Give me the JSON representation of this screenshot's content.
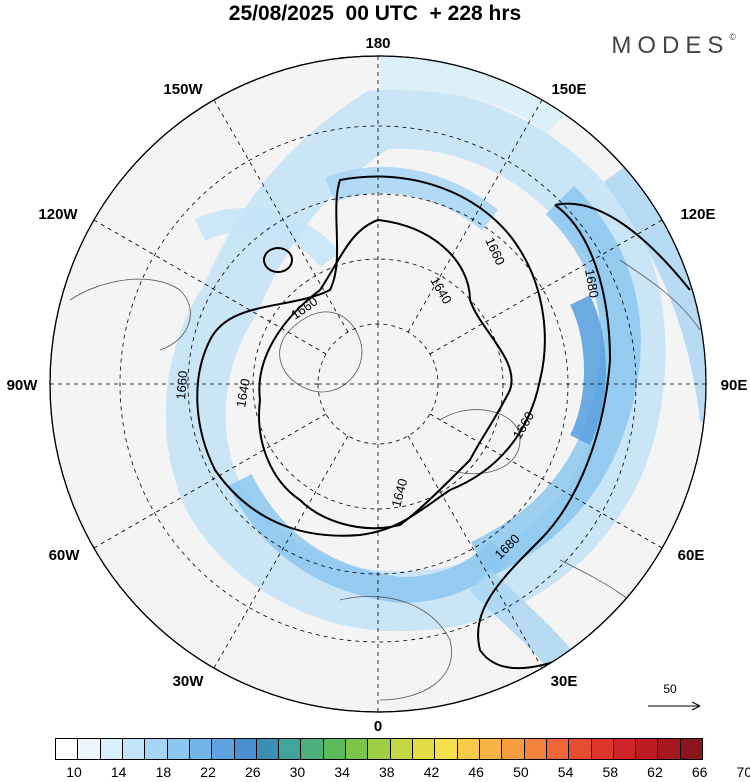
{
  "header": {
    "title": "25/08/2025  00 UTC  + 228 hrs",
    "brand": "MODES",
    "brand_mark": "©"
  },
  "longitude_labels": [
    "180",
    "150E",
    "120E",
    "90E",
    "60E",
    "30E",
    "0",
    "30W",
    "60W",
    "90W",
    "120W",
    "150W"
  ],
  "contours": {
    "inner_label": "1640",
    "middle_label": "1660",
    "outer_label": "1680",
    "values": [
      1640,
      1660,
      1680
    ]
  },
  "vector_reference": {
    "label": "50"
  },
  "colorbar": {
    "labels": [
      "10",
      "14",
      "18",
      "22",
      "26",
      "30",
      "34",
      "38",
      "42",
      "46",
      "50",
      "54",
      "58",
      "62",
      "66",
      "70"
    ],
    "colors": [
      "#ffffff",
      "#eef7fd",
      "#d9effb",
      "#c2e4f8",
      "#a6d5f3",
      "#8cc7ef",
      "#72b6e9",
      "#5ca3df",
      "#4a90d1",
      "#3b8fb3",
      "#40a59b",
      "#4db07c",
      "#5bbb5a",
      "#7cc44a",
      "#9fcd45",
      "#c3d644",
      "#e3dc45",
      "#f6df4c",
      "#f9c94a",
      "#f8b446",
      "#f69c41",
      "#f3823c",
      "#ef6737",
      "#e84d32",
      "#de362d",
      "#cf2528",
      "#bd1c24",
      "#a51820",
      "#8c141c"
    ]
  }
}
